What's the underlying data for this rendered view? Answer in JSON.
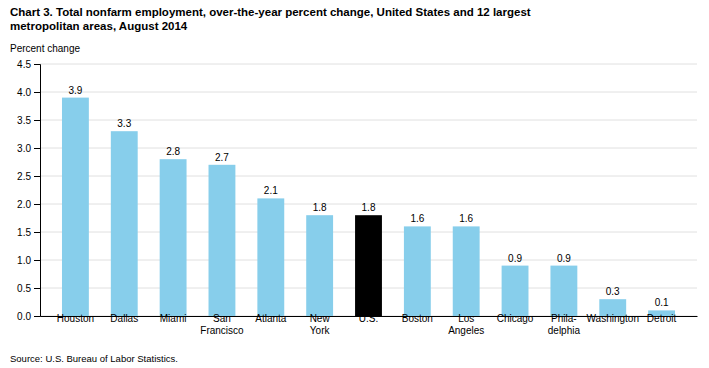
{
  "chart_data": {
    "type": "bar",
    "title": "Chart 3. Total nonfarm employment, over-the-year percent change, United States and 12 largest\nmetropolitan areas, August 2014",
    "ylabel": "Percent change",
    "annotations": [
      "Source: U.S. Bureau of Labor Statistics."
    ],
    "categories": [
      "Houston",
      "Dallas",
      "Miami",
      "San\nFrancisco",
      "Atlanta",
      "New\nYork",
      "U.S.",
      "Boston",
      "Los\nAngeles",
      "Chicago",
      "Phila-\ndelphia",
      "Washington",
      "Detroit"
    ],
    "values": [
      3.9,
      3.3,
      2.8,
      2.7,
      2.1,
      1.8,
      1.8,
      1.6,
      1.6,
      0.9,
      0.9,
      0.3,
      0.1
    ],
    "colors": [
      "#87CEEB",
      "#87CEEB",
      "#87CEEB",
      "#87CEEB",
      "#87CEEB",
      "#87CEEB",
      "#000000",
      "#87CEEB",
      "#87CEEB",
      "#87CEEB",
      "#87CEEB",
      "#87CEEB",
      "#87CEEB"
    ],
    "ylim": [
      0,
      4.5
    ],
    "yticks": [
      {
        "value": 0.0,
        "label": "0.0"
      },
      0.5,
      {
        "value": 1.0,
        "label": "1.0"
      },
      1.5,
      {
        "value": 2.0,
        "label": "2.0"
      },
      2.5,
      {
        "value": 3.0,
        "label": "3.0"
      },
      3.5,
      {
        "value": 4.0,
        "label": "4.0"
      },
      4.5
    ],
    "grid": true,
    "data_labels": true
  }
}
